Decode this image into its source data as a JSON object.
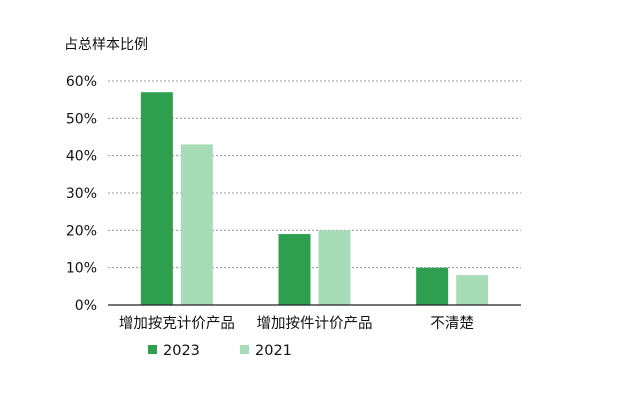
{
  "chart_data": {
    "type": "bar",
    "title": "",
    "ylabel": "占总样本比例",
    "xlabel": "",
    "categories": [
      "增加按克计价产品",
      "增加按件计价产品",
      "不清楚"
    ],
    "series": [
      {
        "name": "2023",
        "values": [
          57,
          19,
          10
        ],
        "color": "#2e9e4f"
      },
      {
        "name": "2021",
        "values": [
          43,
          20,
          8
        ],
        "color": "#a8dbb8"
      }
    ],
    "ylim": [
      0,
      60
    ],
    "yticks": [
      0,
      10,
      20,
      30,
      40,
      50,
      60
    ],
    "ytick_labels": [
      "0%",
      "10%",
      "20%",
      "30%",
      "40%",
      "50%",
      "60%"
    ],
    "grid": "dashed horizontal",
    "legend_position": "bottom"
  }
}
